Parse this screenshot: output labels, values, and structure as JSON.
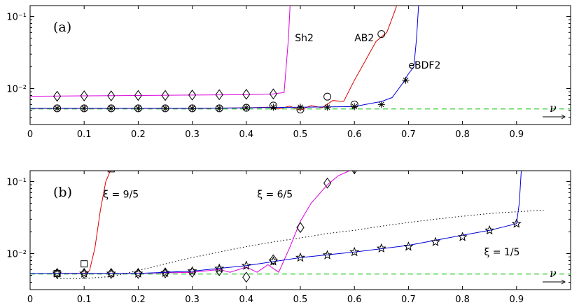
{
  "chart_data": [
    {
      "type": "line",
      "panel_label": "(a)",
      "xlabel": "ν",
      "xlim": [
        0,
        1
      ],
      "ylim_log10": [
        -2.5,
        -0.85
      ],
      "yscale": "log",
      "xticks": [
        0,
        0.1,
        0.2,
        0.3,
        0.4,
        0.5,
        0.6,
        0.7,
        0.8,
        0.9
      ],
      "xtick_labels": [
        "0",
        "0.1",
        "0.2",
        "0.3",
        "0.4",
        "0.5",
        "0.6",
        "0.7",
        "0.8",
        "0.9"
      ],
      "yticks": [
        0.01,
        0.1
      ],
      "ytick_labels": [
        "10⁻²",
        "10⁻¹"
      ],
      "reference_line": {
        "y": 0.0052,
        "color": "#33cc33",
        "style": "dashed"
      },
      "series": [
        {
          "name": "Sh2",
          "color": "#dd00dd",
          "marker": "diamond",
          "x": [
            0,
            0.1,
            0.2,
            0.3,
            0.4,
            0.45,
            0.47,
            0.478,
            0.482
          ],
          "y": [
            0.0078,
            0.0079,
            0.008,
            0.0081,
            0.0082,
            0.0084,
            0.0088,
            0.05,
            0.2
          ],
          "marker_x": [
            0.05,
            0.1,
            0.15,
            0.2,
            0.25,
            0.3,
            0.35,
            0.4,
            0.45
          ],
          "marker_y": [
            0.0078,
            0.0079,
            0.0079,
            0.008,
            0.008,
            0.0081,
            0.0082,
            0.0083,
            0.0084
          ]
        },
        {
          "name": "AB2",
          "color": "#dd0000",
          "marker": "circle",
          "x": [
            0,
            0.1,
            0.2,
            0.3,
            0.4,
            0.44,
            0.46,
            0.48,
            0.5,
            0.52,
            0.54,
            0.56,
            0.58,
            0.6,
            0.62,
            0.64,
            0.66,
            0.675,
            0.685
          ],
          "y": [
            0.0053,
            0.0053,
            0.0053,
            0.0053,
            0.0054,
            0.0055,
            0.0052,
            0.0057,
            0.005,
            0.0058,
            0.0054,
            0.0068,
            0.0066,
            0.013,
            0.024,
            0.045,
            0.06,
            0.12,
            0.2
          ],
          "marker_x": [
            0.05,
            0.1,
            0.15,
            0.2,
            0.25,
            0.3,
            0.35,
            0.4,
            0.45,
            0.5,
            0.55,
            0.6,
            0.65
          ],
          "marker_y": [
            0.0053,
            0.0053,
            0.0053,
            0.0053,
            0.0053,
            0.0053,
            0.0053,
            0.0054,
            0.0058,
            0.0051,
            0.0077,
            0.006,
            0.057
          ]
        },
        {
          "name": "eBDF2",
          "color": "#0000dd",
          "marker": "asterisk",
          "x": [
            0,
            0.1,
            0.2,
            0.3,
            0.4,
            0.5,
            0.6,
            0.63,
            0.65,
            0.67,
            0.69,
            0.7,
            0.71,
            0.715,
            0.72
          ],
          "y": [
            0.0053,
            0.0053,
            0.0053,
            0.0053,
            0.0054,
            0.0055,
            0.0056,
            0.0062,
            0.0066,
            0.0075,
            0.012,
            0.016,
            0.02,
            0.05,
            0.2
          ],
          "marker_x": [
            0.05,
            0.1,
            0.15,
            0.2,
            0.25,
            0.3,
            0.35,
            0.4,
            0.45,
            0.5,
            0.55,
            0.6,
            0.65,
            0.695
          ],
          "marker_y": [
            0.0053,
            0.0053,
            0.0053,
            0.0053,
            0.0053,
            0.0053,
            0.0053,
            0.0054,
            0.0055,
            0.0055,
            0.0055,
            0.0056,
            0.006,
            0.013
          ]
        }
      ],
      "annotations": [
        {
          "text": "Sh2",
          "x": 0.49,
          "y": 0.045
        },
        {
          "text": "AB2",
          "x": 0.6,
          "y": 0.045
        },
        {
          "text": "eBDF2",
          "x": 0.7,
          "y": 0.019
        }
      ]
    },
    {
      "type": "line",
      "panel_label": "(b)",
      "xlabel": "ν",
      "xlim": [
        0,
        1
      ],
      "ylim_log10": [
        -2.5,
        -0.85
      ],
      "yscale": "log",
      "xticks": [
        0,
        0.1,
        0.2,
        0.3,
        0.4,
        0.5,
        0.6,
        0.7,
        0.8,
        0.9
      ],
      "xtick_labels": [
        "0",
        "0.1",
        "0.2",
        "0.3",
        "0.4",
        "0.5",
        "0.6",
        "0.7",
        "0.8",
        "0.9"
      ],
      "yticks": [
        0.01,
        0.1
      ],
      "ytick_labels": [
        "10⁻²",
        "10⁻¹"
      ],
      "reference_line": {
        "y": 0.0052,
        "color": "#33cc33",
        "style": "dashed"
      },
      "dotted_curve": {
        "color": "#000000",
        "x": [
          0.05,
          0.1,
          0.15,
          0.2,
          0.25,
          0.3,
          0.35,
          0.4,
          0.45,
          0.5,
          0.55,
          0.6,
          0.65,
          0.7,
          0.75,
          0.8,
          0.85,
          0.9,
          0.95
        ],
        "y": [
          0.0045,
          0.0045,
          0.0048,
          0.0058,
          0.0072,
          0.0088,
          0.0105,
          0.0125,
          0.0145,
          0.0165,
          0.019,
          0.021,
          0.024,
          0.027,
          0.03,
          0.033,
          0.036,
          0.038,
          0.04
        ]
      },
      "series": [
        {
          "name": "ξ = 9/5",
          "color": "#dd0000",
          "marker": "square",
          "x": [
            0.05,
            0.1,
            0.11,
            0.12,
            0.13,
            0.14,
            0.15
          ],
          "y": [
            0.0053,
            0.0053,
            0.0058,
            0.012,
            0.04,
            0.1,
            0.15
          ],
          "marker_x": [
            0.05,
            0.1,
            0.15
          ],
          "marker_y": [
            0.0053,
            0.0072,
            0.15
          ]
        },
        {
          "name": "ξ = 6/5",
          "color": "#dd00dd",
          "marker": "diamond",
          "x": [
            0.05,
            0.1,
            0.2,
            0.3,
            0.35,
            0.37,
            0.4,
            0.42,
            0.44,
            0.46,
            0.48,
            0.5,
            0.52,
            0.55,
            0.57,
            0.59,
            0.61
          ],
          "y": [
            0.0053,
            0.0053,
            0.0053,
            0.0055,
            0.006,
            0.0055,
            0.0065,
            0.0055,
            0.007,
            0.0055,
            0.012,
            0.028,
            0.05,
            0.09,
            0.12,
            0.14,
            0.2
          ],
          "marker_x": [
            0.05,
            0.1,
            0.15,
            0.2,
            0.25,
            0.3,
            0.35,
            0.4,
            0.45,
            0.5,
            0.55,
            0.6
          ],
          "marker_y": [
            0.0053,
            0.0053,
            0.0053,
            0.0053,
            0.0054,
            0.0055,
            0.0058,
            0.0047,
            0.0082,
            0.023,
            0.095,
            0.15
          ]
        },
        {
          "name": "ξ = 1/5",
          "color": "#0000dd",
          "marker": "star",
          "x": [
            0,
            0.1,
            0.2,
            0.3,
            0.4,
            0.5,
            0.6,
            0.7,
            0.8,
            0.85,
            0.9,
            0.905,
            0.91
          ],
          "y": [
            0.0053,
            0.0053,
            0.0053,
            0.0057,
            0.0068,
            0.0088,
            0.0105,
            0.013,
            0.018,
            0.021,
            0.026,
            0.05,
            0.2
          ],
          "marker_x": [
            0.05,
            0.1,
            0.15,
            0.2,
            0.25,
            0.3,
            0.35,
            0.4,
            0.45,
            0.5,
            0.55,
            0.6,
            0.65,
            0.7,
            0.75,
            0.8,
            0.85,
            0.9
          ],
          "marker_y": [
            0.0053,
            0.0053,
            0.0053,
            0.0053,
            0.0054,
            0.0057,
            0.0062,
            0.0068,
            0.0078,
            0.0088,
            0.0095,
            0.0105,
            0.0118,
            0.0125,
            0.0145,
            0.017,
            0.021,
            0.026
          ]
        }
      ],
      "annotations": [
        {
          "text": "ξ = 9/5",
          "x": 0.135,
          "y": 0.06
        },
        {
          "text": "ξ = 6/5",
          "x": 0.42,
          "y": 0.06
        },
        {
          "text": "ξ = 1/5",
          "x": 0.84,
          "y": 0.0095
        }
      ]
    }
  ]
}
